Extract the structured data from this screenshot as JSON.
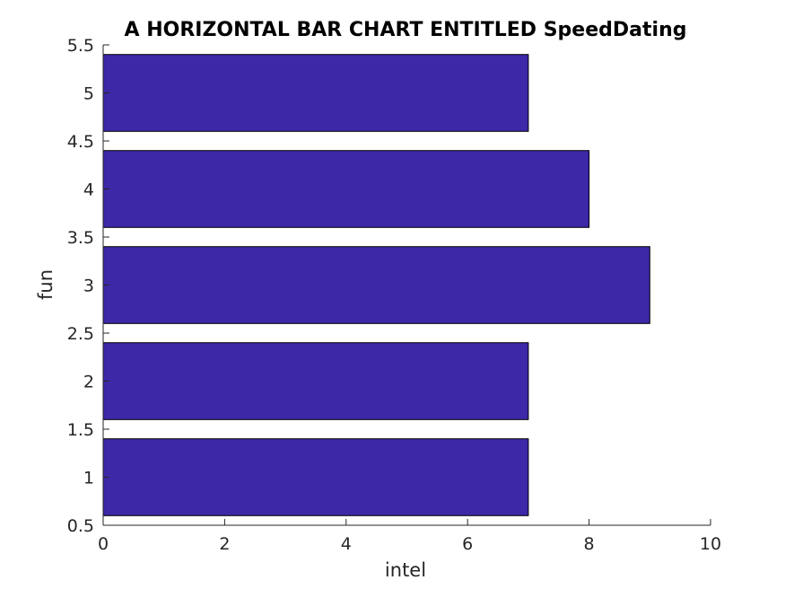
{
  "chart_data": {
    "type": "bar",
    "orientation": "horizontal",
    "title": "A HORIZONTAL BAR CHART ENTITLED SpeedDating",
    "xlabel": "intel",
    "ylabel": "fun",
    "categories": [
      1,
      2,
      3,
      4,
      5
    ],
    "values": [
      7,
      7,
      9,
      8,
      7
    ],
    "xlim": [
      0,
      10
    ],
    "ylim": [
      0.5,
      5.5
    ],
    "xticks": [
      0,
      2,
      4,
      6,
      8,
      10
    ],
    "yticks": [
      0.5,
      1,
      1.5,
      2,
      2.5,
      3,
      3.5,
      4,
      4.5,
      5,
      5.5
    ],
    "bar_color": "#3d28a7",
    "grid": false,
    "legend": "none"
  }
}
